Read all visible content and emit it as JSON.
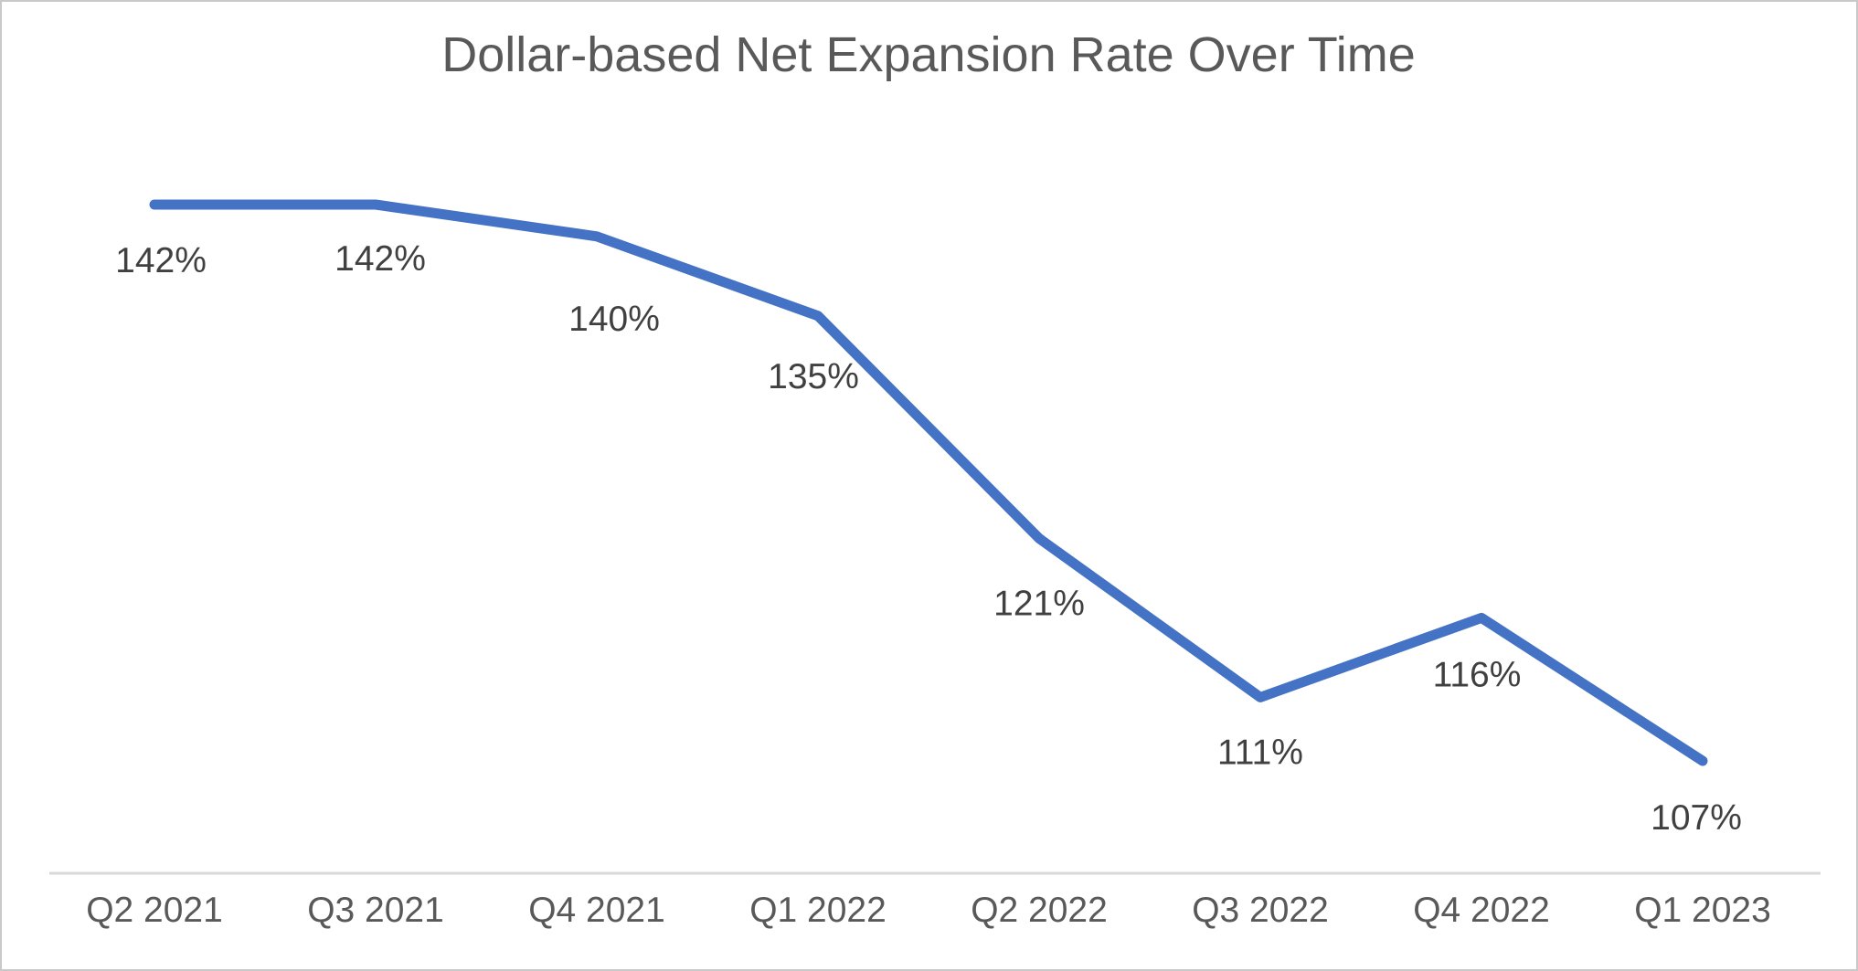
{
  "chart_data": {
    "type": "line",
    "title": "Dollar-based Net Expansion Rate Over Time",
    "categories": [
      "Q2 2021",
      "Q3 2021",
      "Q4 2021",
      "Q1 2022",
      "Q2 2022",
      "Q3 2022",
      "Q4 2022",
      "Q1 2023"
    ],
    "values": [
      142,
      142,
      140,
      135,
      121,
      111,
      116,
      107
    ],
    "data_labels": [
      "142%",
      "142%",
      "140%",
      "135%",
      "121%",
      "111%",
      "116%",
      "107%"
    ],
    "xlabel": "",
    "ylabel": "",
    "ylim": [
      107,
      142
    ],
    "grid": false,
    "legend_position": "none",
    "y_axis_visible": false,
    "colors": {
      "line": "#4472C4",
      "title": "#595959",
      "data_label": "#404040",
      "axis_label": "#595959",
      "axis_line": "#D9D9D9",
      "frame_border": "#C9C9C9",
      "background": "#FFFFFF"
    }
  }
}
